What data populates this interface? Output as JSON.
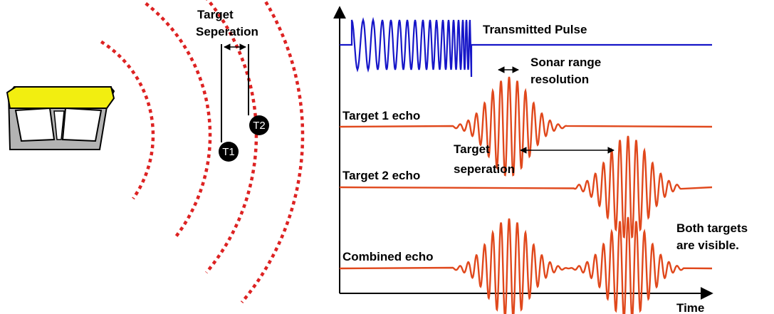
{
  "left": {
    "target_separation_label": [
      "Target",
      "Seperation"
    ],
    "target1_label": "T1",
    "target2_label": "T2"
  },
  "right": {
    "transmitted_pulse_label": "Transmitted Pulse",
    "sonar_range_resolution_label": [
      "Sonar range",
      "resolution"
    ],
    "target1_echo_label": "Target 1 echo",
    "target_separation_label": [
      "Target",
      "seperation"
    ],
    "target2_echo_label": "Target 2 echo",
    "combined_echo_label": "Combined echo",
    "both_targets_label": [
      "Both targets",
      "are visible."
    ],
    "x_axis_label": "Time"
  },
  "colors": {
    "pulse": "#1616c8",
    "echo": "#e0481c",
    "wave_arcs": "#dd2222",
    "device_body": "#b3b3b3",
    "device_top": "#f2ee10"
  }
}
